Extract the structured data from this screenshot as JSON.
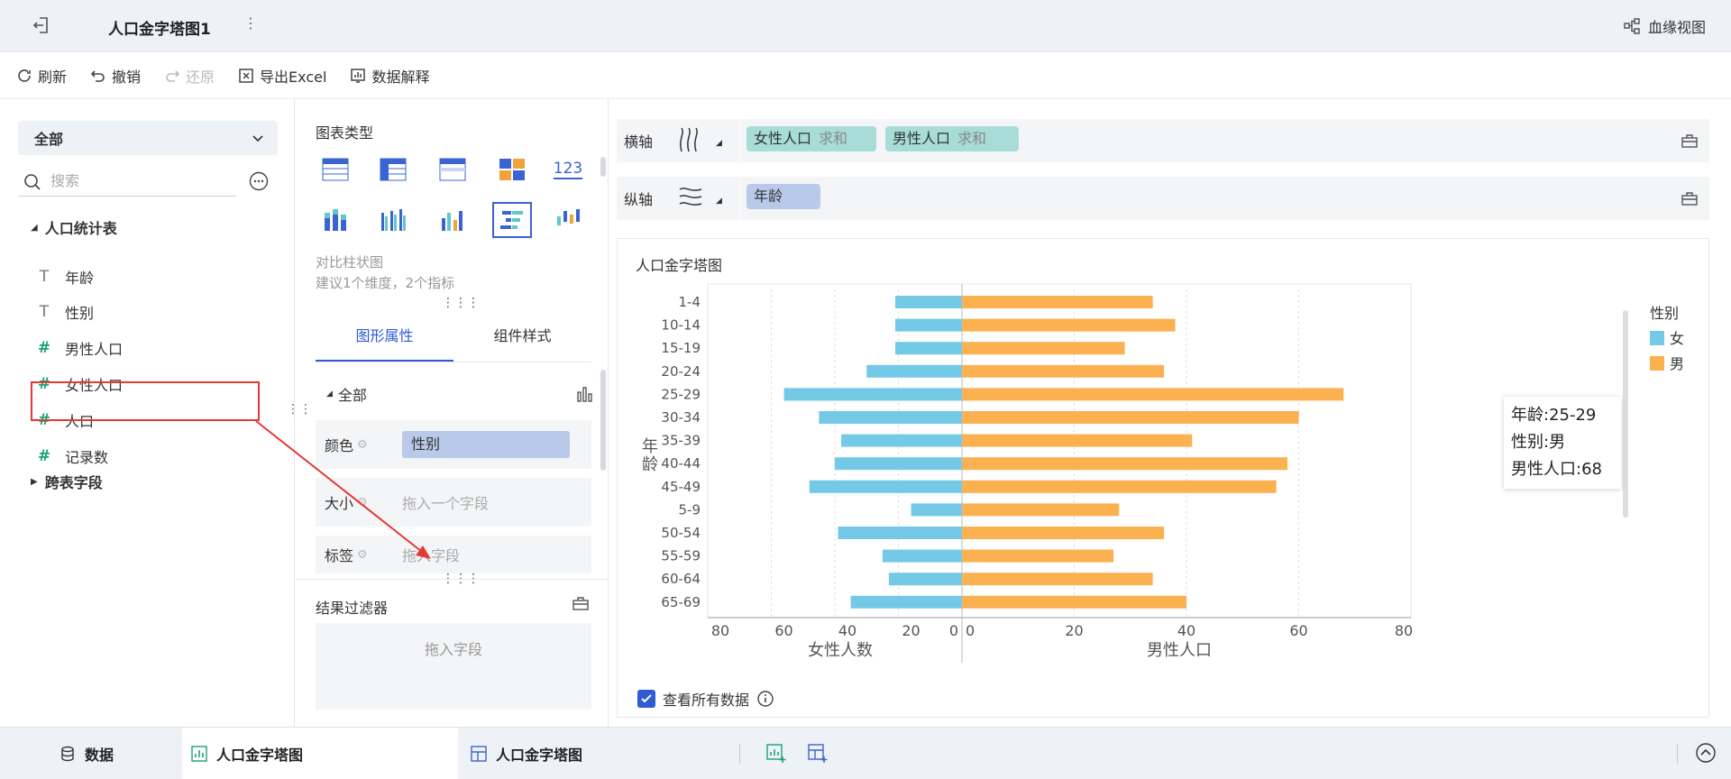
{
  "header": {
    "title": "人口金字塔图1",
    "more": "⋮",
    "lineage_label": "血缘视图"
  },
  "toolbar": {
    "refresh": "刷新",
    "undo": "撤销",
    "redo": "还原",
    "export": "导出Excel",
    "explain": "数据解释"
  },
  "left": {
    "scope": "全部",
    "search_placeholder": "搜索",
    "group_title": "人口统计表",
    "fields": [
      {
        "label": "年龄",
        "type": "dimension",
        "icon": "T"
      },
      {
        "label": "性别",
        "type": "dimension",
        "icon": "T"
      },
      {
        "label": "男性人口",
        "type": "measure",
        "icon": "#"
      },
      {
        "label": "女性人口",
        "type": "measure",
        "icon": "#"
      },
      {
        "label": "人口",
        "type": "measure",
        "icon": "#"
      },
      {
        "label": "记录数",
        "type": "measure",
        "icon": "#"
      }
    ],
    "cross_table": "跨表字段"
  },
  "middle": {
    "chart_type_title": "图表类型",
    "chart_type_123": "123",
    "desc_line1": "对比柱状图",
    "desc_line2": "建议1个维度，2个指标",
    "tab_shape": "图形属性",
    "tab_style": "组件样式",
    "all_label": "全部",
    "color_label": "颜色",
    "color_value": "性别",
    "size_label": "大小",
    "size_placeholder": "拖入一个字段",
    "tag_label": "标签",
    "tag_placeholder": "拖入字段",
    "filter_title": "结果过滤器",
    "filter_placeholder": "拖入字段"
  },
  "axes": {
    "x_label": "横轴",
    "y_label": "纵轴",
    "x_pills": [
      {
        "name": "女性人口",
        "agg": "求和"
      },
      {
        "name": "男性人口",
        "agg": "求和"
      }
    ],
    "y_pills": [
      {
        "name": "年龄"
      }
    ]
  },
  "chart_data": {
    "type": "bar",
    "title": "人口金字塔图",
    "ylabel": "年龄",
    "categories": [
      "1-4",
      "10-14",
      "15-19",
      "20-24",
      "25-29",
      "30-34",
      "35-39",
      "40-44",
      "45-49",
      "5-9",
      "50-54",
      "55-59",
      "60-64",
      "65-69"
    ],
    "series": [
      {
        "name": "女",
        "color": "#74c9e6",
        "values": [
          21,
          21,
          21,
          30,
          56,
          45,
          38,
          40,
          48,
          16,
          39,
          25,
          23,
          35
        ]
      },
      {
        "name": "男",
        "color": "#fbb150",
        "values": [
          34,
          38,
          29,
          36,
          68,
          60,
          41,
          58,
          56,
          28,
          36,
          27,
          34,
          40
        ]
      }
    ],
    "left_axis": {
      "label": "女性人数",
      "ticks": [
        80,
        60,
        40,
        20,
        0
      ],
      "max": 80
    },
    "right_axis": {
      "label": "男性人口",
      "ticks": [
        0,
        20,
        40,
        60,
        80
      ],
      "max": 80
    },
    "legend_title": "性别",
    "legend_position": "right",
    "grid": true
  },
  "tooltip": {
    "line1": "年龄:25-29",
    "line2": "性别:男",
    "line3": "男性人口:68"
  },
  "see_all": "查看所有数据",
  "bottom_tabs": {
    "data": "数据",
    "tab1": "人口金字塔图",
    "tab2": "人口金字塔图"
  }
}
